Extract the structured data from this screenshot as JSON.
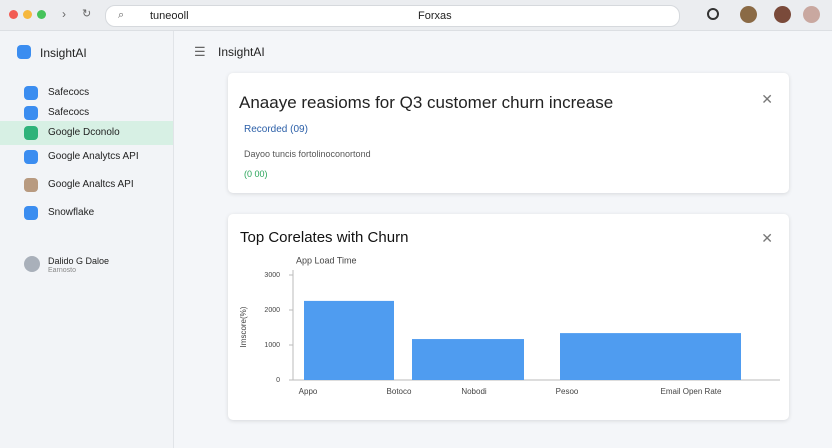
{
  "browser": {
    "url": "tuneooll",
    "tab_title": "Forxas"
  },
  "sidebar": {
    "brand": "InsightAI",
    "items": [
      "Safecocs",
      "Safecocs",
      "Google Dconolo",
      "Google Analytcs API",
      "Google Analtcs API",
      "Snowflake"
    ],
    "user": {
      "name": "Dalido G Daloe",
      "role": "Earnosto"
    }
  },
  "header": {
    "title": "InsightAI"
  },
  "cards": [
    {
      "title": "Anaaye reasioms for Q3 customer churn increase",
      "subtitle": "Recorded (09)",
      "detail": "Dayoo tuncis fortolinoconortond",
      "tag": "(0 00)"
    }
  ],
  "chart_data": {
    "type": "bar",
    "title": "Top Corelates with Churn",
    "ylabel": "Imscore(%)",
    "categories": [
      "Appo",
      "Botoco",
      "Nobodi",
      "Pesoo",
      "Email Open Rate"
    ],
    "series": [
      {
        "name": "App Load Time",
        "color": "#4f9cf0",
        "values": [
          2260,
          null,
          1170,
          null,
          1340
        ]
      }
    ],
    "ylim": [
      0,
      3000
    ],
    "yticks": [
      0,
      1000,
      2000,
      3000
    ],
    "grid": false
  }
}
